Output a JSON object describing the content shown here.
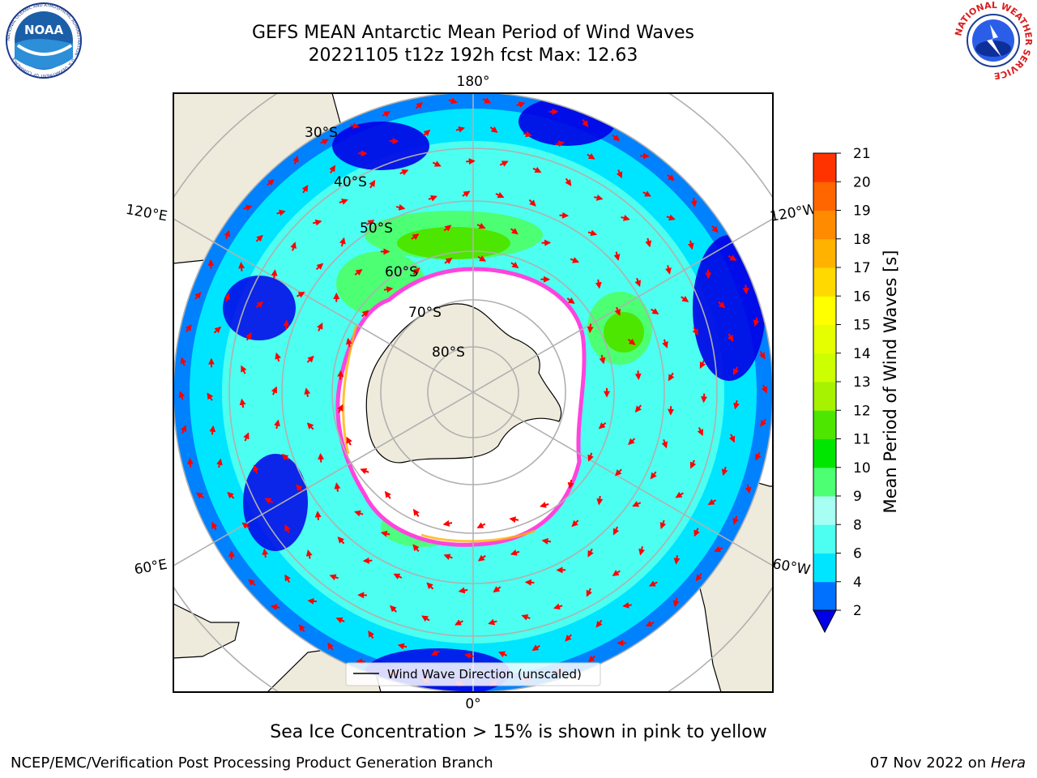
{
  "title_line1": "GEFS MEAN Antarctic Mean Period of Wind Waves",
  "title_line2": "20221105 t12z 192h fcst   Max: 12.63",
  "caption": "Sea Ice Concentration > 15% is shown in pink to yellow",
  "footer_left": "NCEP/EMC/Verification Post Processing Product Generation Branch",
  "footer_date": "07 Nov 2022 on ",
  "footer_machine": "Hera",
  "legend_label": "Wind Wave Direction (unscaled)",
  "noaa_logo_text": "NOAA",
  "noaa_ring_text": "NATIONAL OCEANIC AND ATMOSPHERIC ADMINISTRATION · U.S. DEPARTMENT OF COMMERCE",
  "nws_ring_text": "NATIONAL WEATHER SERVICE",
  "lat_labels": [
    "30°S",
    "40°S",
    "50°S",
    "60°S",
    "70°S",
    "80°S"
  ],
  "lon_labels": {
    "top": "180°",
    "bottom": "0°",
    "upper_left": "120°E",
    "upper_right": "120°W",
    "lower_left": "60°E",
    "lower_right": "60°W"
  },
  "colorbar": {
    "title": "Mean Period of Wind Waves [s]",
    "ticks": [
      "2",
      "4",
      "6",
      "8",
      "9",
      "10",
      "11",
      "12",
      "13",
      "14",
      "15",
      "16",
      "17",
      "18",
      "19",
      "20",
      "21"
    ],
    "bounds": [
      2,
      4,
      6,
      8,
      9,
      10,
      11,
      12,
      13,
      14,
      15,
      16,
      17,
      18,
      19,
      20,
      21
    ],
    "colors": [
      "#0071ff",
      "#00e5ff",
      "#4dfff0",
      "#a6fff2",
      "#4dff73",
      "#00e600",
      "#4de600",
      "#a6f200",
      "#ccff00",
      "#e6ff00",
      "#ffff00",
      "#ffd900",
      "#ffb300",
      "#ff8c00",
      "#ff6600",
      "#ff3300",
      "#ff0000"
    ],
    "under_color": "#0000e6"
  },
  "colors": {
    "land": "#efebdc",
    "ice": "#ffffff",
    "ice_edge": "#ff44dd",
    "arrow": "#ff0000",
    "grid": "#b0b0b0"
  }
}
